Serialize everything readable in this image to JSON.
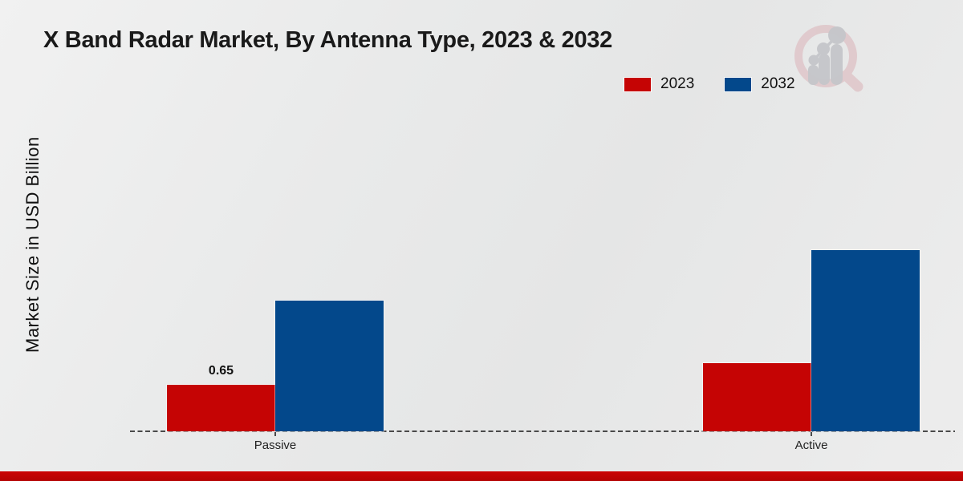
{
  "chart_data": {
    "type": "bar",
    "title": "X Band Radar Market, By Antenna Type, 2023 & 2032",
    "ylabel": "Market Size in USD Billion",
    "xlabel": "",
    "categories": [
      "Passive",
      "Active"
    ],
    "series": [
      {
        "name": "2023",
        "color": "#c50404",
        "values": [
          0.65,
          0.95
        ]
      },
      {
        "name": "2032",
        "color": "#03488b",
        "values": [
          1.83,
          2.53
        ]
      }
    ],
    "value_labels": [
      [
        "0.65",
        ""
      ],
      [
        "",
        ""
      ]
    ],
    "ylim": [
      0,
      2.9
    ],
    "grid": false,
    "legend_position": "top-right",
    "baseline_style": "dashed"
  },
  "branding": {
    "logo_name": "market-research-future-watermark",
    "accent_color": "#c50404",
    "logo_ring_color": "#d9aeb3",
    "logo_glyph_color": "#c5c6ca"
  }
}
